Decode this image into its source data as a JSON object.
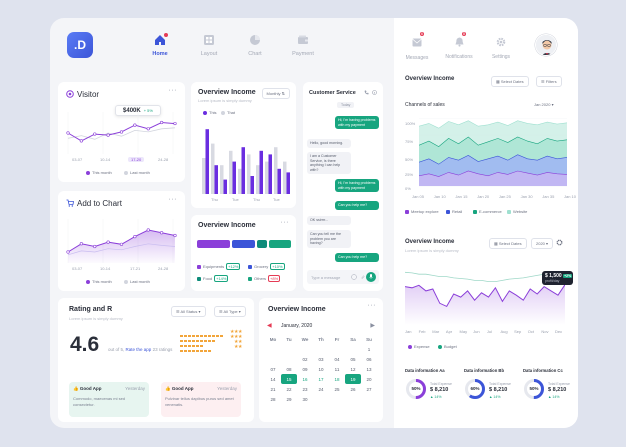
{
  "app": {
    "logo": ".D"
  },
  "nav": [
    {
      "label": "Home"
    },
    {
      "label": "Layout"
    },
    {
      "label": "Chart"
    },
    {
      "label": "Payment"
    }
  ],
  "top_right": {
    "messages_label": "Messages",
    "messages_badge": "6",
    "notifications_label": "Notifications",
    "notifications_badge": "8",
    "settings_label": "Settings"
  },
  "visitor": {
    "title": "Visitor",
    "tooltip_value": "$400K",
    "tooltip_change": "+ 5%",
    "x_labels": [
      "03-07",
      "10-14",
      "17-20",
      "24-28"
    ],
    "legend": [
      "This month",
      "Last month"
    ]
  },
  "add_to_chart": {
    "title": "Add to Chart",
    "x_labels": [
      "03-07",
      "10-14",
      "17-21",
      "24-28"
    ],
    "legend": [
      "This month",
      "Last month"
    ]
  },
  "overview_income_bars": {
    "title": "Overview Income",
    "subtitle": "Lorem ipsum is simply dummy",
    "period": "Monthly",
    "legend": [
      "This",
      "That"
    ],
    "x_labels": [
      "Thu",
      "Tue",
      "Thu",
      "Tue"
    ]
  },
  "customer_service": {
    "title": "Customer Service",
    "tag": "Today",
    "messages": [
      {
        "dir": "out",
        "text": "Hi, I'm having problems with my payment"
      },
      {
        "dir": "in",
        "text": "Hello, good morning."
      },
      {
        "dir": "in",
        "text": "I am a Customer Service, is there anything I can help with?"
      },
      {
        "dir": "out",
        "text": "Hi, I'm having problems with my payment"
      },
      {
        "dir": "out",
        "text": "Can you help me?"
      },
      {
        "dir": "in",
        "text": "OK ssirrrr..."
      },
      {
        "dir": "in",
        "text": "Can you tell me the problem you are having?"
      },
      {
        "dir": "out",
        "text": "Can you help me?"
      }
    ],
    "input_placeholder": "Type a message"
  },
  "overview_income_list": {
    "title": "Overview Income",
    "items": [
      {
        "label": "Equipments",
        "badge": "+12%"
      },
      {
        "label": "Grocery",
        "badge": "+10%"
      },
      {
        "label": "Food",
        "badge": "+14%"
      },
      {
        "label": "Others",
        "badge": "+8%"
      }
    ]
  },
  "rating": {
    "title": "Rating and R",
    "subtitle": "Lorem ipsum is simply dummy",
    "filter1": "All Status",
    "filter2": "All Type",
    "score": "4.6",
    "out_of": "out of 5,",
    "rate_link": "Rate the app",
    "ratings_count": "23 ratings",
    "reviews": [
      {
        "title": "Good App",
        "date": "Yesterday",
        "body": "Commodo, maecenas mi sed consectetur."
      },
      {
        "title": "Good App",
        "date": "Yesterday",
        "body": "Pulvinar tellus dapibus purus sed amet venenatis."
      }
    ]
  },
  "calendar": {
    "title": "Overview Income",
    "month": "January, 2020",
    "weekdays": [
      "Mo",
      "Tu",
      "We",
      "Th",
      "Fr",
      "Sa",
      "Su"
    ],
    "weeks": [
      [
        "",
        "",
        "",
        "",
        "",
        "",
        "1"
      ],
      [
        "",
        "",
        "02",
        "03",
        "04",
        "05",
        "06"
      ],
      [
        "07",
        "08",
        "09",
        "10",
        "11",
        "12",
        "13"
      ],
      [
        "14",
        "15",
        "16",
        "17",
        "18",
        "19",
        "20"
      ],
      [
        "21",
        "22",
        "23",
        "24",
        "25",
        "26",
        "27"
      ],
      [
        "28",
        "29",
        "30",
        "",
        "",
        "",
        ""
      ]
    ]
  },
  "overview_sales": {
    "title": "Overview Income",
    "btn_dates": "Select Dates",
    "btn_filters": "Filters",
    "subtitle": "Channels of sales",
    "period": "Jan 2020",
    "y_labels": [
      "100%",
      "75%",
      "50%",
      "25%",
      "0%"
    ],
    "x_labels": [
      "Jan 05",
      "Jan 10",
      "Jan 15",
      "Jan 20",
      "Jan 25",
      "Jan 30",
      "Jan 35",
      "Jan 10"
    ],
    "legend": [
      "Meetup explore",
      "Retail",
      "E-commerce",
      "Website"
    ]
  },
  "overview_income_line": {
    "title": "Overview Income",
    "btn_dates": "Select Dates",
    "year": "2020",
    "subtitle": "Lorem ipsum is simply dummy",
    "tooltip_value": "$ 1,500",
    "tooltip_badge": "+2%",
    "tooltip_label": "profit/day",
    "x_labels": [
      "Jan",
      "Feb",
      "Mar",
      "Apr",
      "May",
      "Jun",
      "Jul",
      "Aug",
      "Sep",
      "Oct",
      "Nov",
      "Dec"
    ],
    "legend": [
      "Expense",
      "Budget"
    ]
  },
  "data_info": [
    {
      "title": "Data information Aa",
      "percent": "50%",
      "sub": "Total Expense",
      "value": "$ 8,210",
      "change": "▲ 14%"
    },
    {
      "title": "Data information Bb",
      "percent": "60%",
      "sub": "Total Expense",
      "value": "$ 8,210",
      "change": "▲ 14%"
    },
    {
      "title": "Data information Cc",
      "percent": "50%",
      "sub": "Total Expense",
      "value": "$ 8,210",
      "change": "▲ 14%"
    }
  ],
  "chart_data": [
    {
      "type": "line",
      "title": "Visitor",
      "x": [
        0,
        1,
        2,
        3,
        4,
        5,
        6,
        7,
        8
      ],
      "series": [
        {
          "name": "This month",
          "values": [
            40,
            25,
            38,
            36,
            42,
            55,
            48,
            60,
            58
          ]
        },
        {
          "name": "Last month",
          "values": [
            30,
            35,
            28,
            40,
            34,
            45,
            42,
            48,
            50
          ]
        }
      ],
      "ylim": [
        0,
        80
      ]
    },
    {
      "type": "area",
      "title": "Add to Chart",
      "x": [
        0,
        1,
        2,
        3,
        4,
        5,
        6,
        7,
        8
      ],
      "series": [
        {
          "name": "This month",
          "values": [
            20,
            35,
            30,
            38,
            34,
            48,
            60,
            55,
            50
          ]
        },
        {
          "name": "Last month",
          "values": [
            15,
            22,
            20,
            26,
            24,
            30,
            35,
            32,
            30
          ]
        }
      ],
      "ylim": [
        0,
        80
      ]
    },
    {
      "type": "bar",
      "title": "Overview Income",
      "categories": [
        "1",
        "2",
        "3",
        "4",
        "5",
        "6",
        "7",
        "8",
        "9",
        "10"
      ],
      "series": [
        {
          "name": "This",
          "values": [
            90,
            40,
            20,
            45,
            65,
            25,
            60,
            55,
            35,
            30
          ]
        },
        {
          "name": "That",
          "values": [
            50,
            70,
            40,
            60,
            35,
            55,
            40,
            45,
            65,
            45
          ]
        }
      ],
      "ylim": [
        0,
        100
      ]
    },
    {
      "type": "area",
      "title": "Channels of sales",
      "x": [
        0,
        1,
        2,
        3,
        4,
        5,
        6,
        7,
        8,
        9,
        10,
        11,
        12,
        13,
        14,
        15
      ],
      "series": [
        {
          "name": "Meetup explore",
          "values": [
            15,
            18,
            14,
            20,
            16,
            22,
            18,
            15,
            20,
            17,
            22,
            19,
            16,
            20,
            18,
            17
          ]
        },
        {
          "name": "Retail",
          "values": [
            35,
            40,
            32,
            42,
            38,
            45,
            36,
            40,
            44,
            38,
            46,
            40,
            38,
            44,
            40,
            42
          ]
        },
        {
          "name": "E-commerce",
          "values": [
            60,
            66,
            58,
            70,
            62,
            72,
            60,
            65,
            70,
            64,
            72,
            66,
            62,
            70,
            66,
            68
          ]
        },
        {
          "name": "Website",
          "values": [
            88,
            92,
            85,
            95,
            90,
            96,
            88,
            90,
            94,
            89,
            96,
            92,
            90,
            94,
            91,
            93
          ]
        }
      ],
      "ylim": [
        0,
        100
      ]
    },
    {
      "type": "line",
      "title": "Overview Income",
      "x": [
        0,
        1,
        2,
        3,
        4,
        5,
        6,
        7,
        8,
        9,
        10,
        11,
        12,
        13,
        14,
        15,
        16,
        17,
        18,
        19,
        20,
        21,
        22,
        23
      ],
      "series": [
        {
          "name": "Expense",
          "values": [
            62,
            60,
            64,
            55,
            58,
            35,
            30,
            50,
            45,
            55,
            40,
            52,
            45,
            60,
            38,
            55,
            48,
            40,
            58,
            50,
            62,
            55,
            48,
            65
          ]
        },
        {
          "name": "Budget",
          "values": [
            85,
            84,
            82,
            82,
            80,
            78,
            78,
            76,
            75,
            74,
            72,
            72,
            70,
            70,
            72,
            74,
            75,
            76,
            78,
            80,
            82,
            84,
            85,
            86
          ]
        }
      ],
      "ylim": [
        0,
        100
      ]
    }
  ]
}
